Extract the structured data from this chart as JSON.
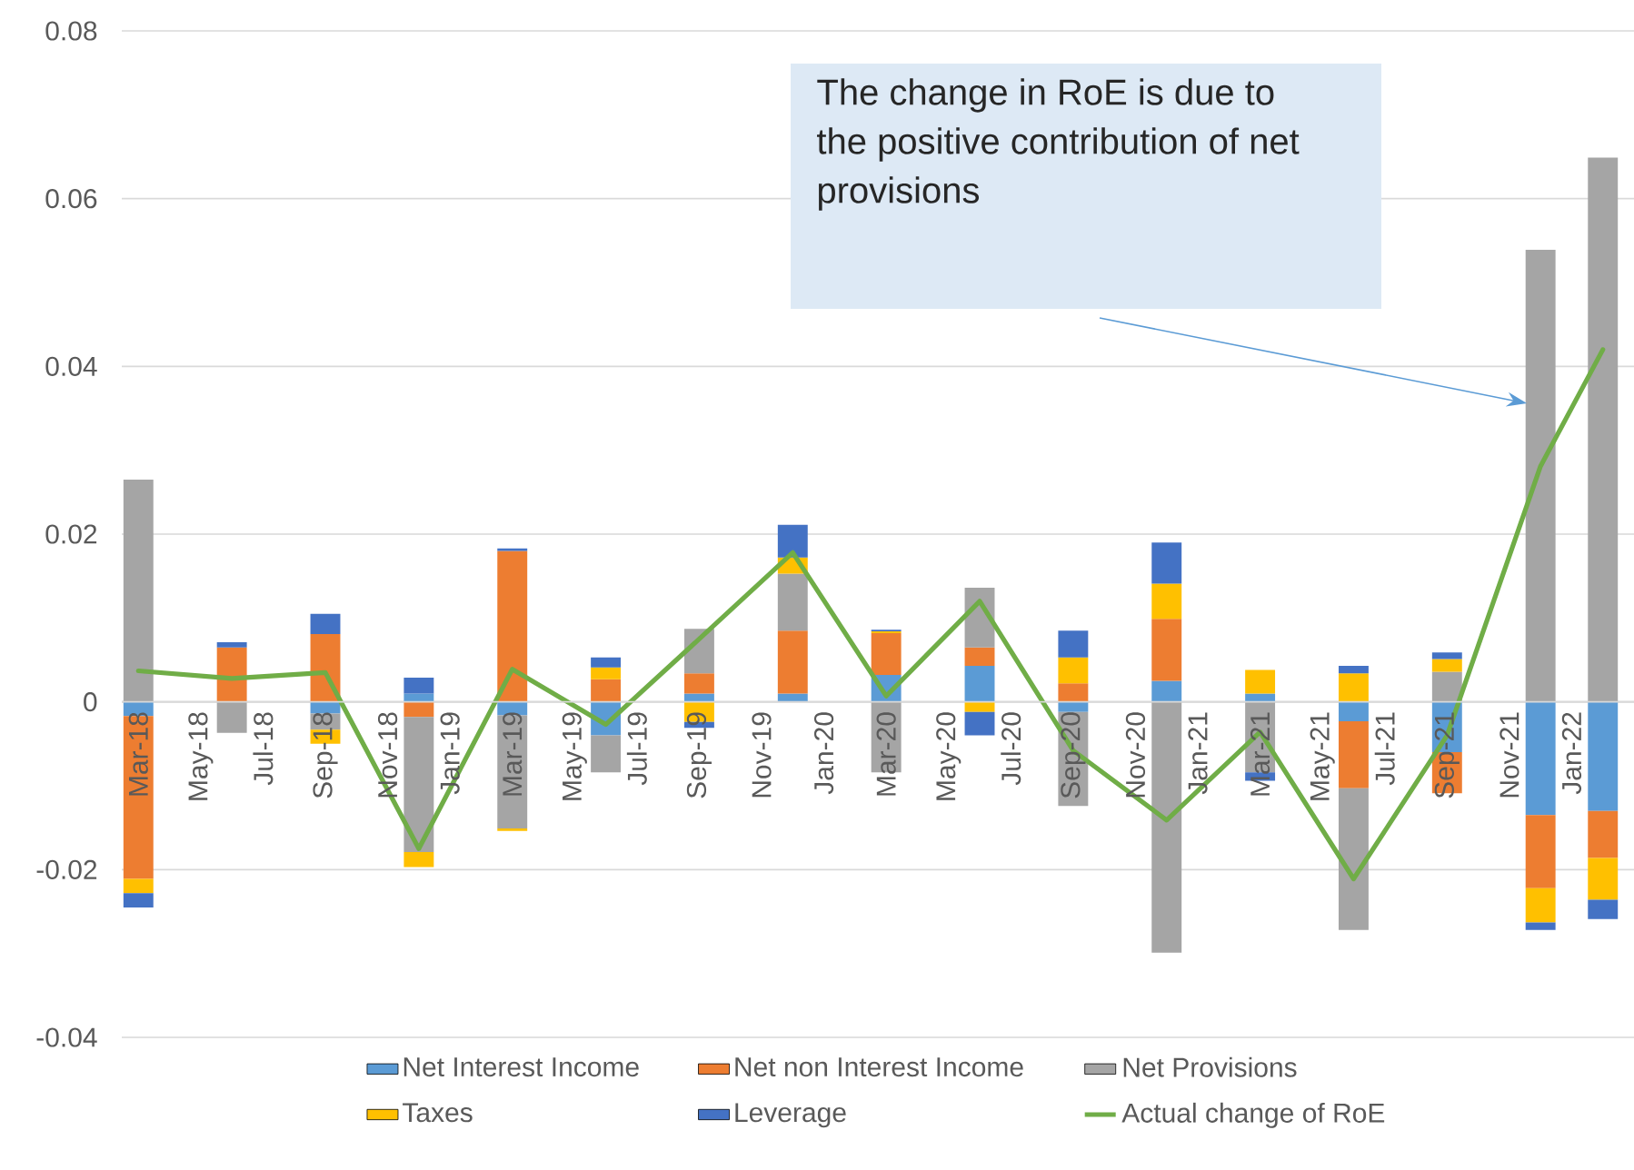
{
  "chart_data": {
    "type": "bar",
    "stacked": true,
    "grid": "y",
    "legend": "bottom",
    "x": [
      "2018-03",
      "2018-06",
      "2018-09",
      "2018-12",
      "2019-03",
      "2019-06",
      "2019-09",
      "2019-12",
      "2020-03",
      "2020-06",
      "2020-09",
      "2020-12",
      "2021-03",
      "2021-06",
      "2021-09",
      "2021-12",
      "2022-02"
    ],
    "series": [
      {
        "name": "Net Interest Income",
        "color": "#5b9bd5",
        "values": [
          -0.0017,
          0,
          -0.0014,
          0.001,
          -0.0016,
          -0.004,
          0.001,
          0.001,
          0.0032,
          0.0043,
          -0.0012,
          0.0025,
          0.001,
          -0.0023,
          -0.006,
          -0.0135,
          -0.013
        ]
      },
      {
        "name": "Net non Interest Income",
        "color": "#ed7d31",
        "values": [
          -0.0194,
          0.0065,
          0.0081,
          -0.0018,
          0.018,
          0.0027,
          0.0024,
          0.0075,
          0.005,
          0.0022,
          0.0022,
          0.0074,
          0,
          -0.008,
          -0.0049,
          -0.0087,
          -0.0056
        ]
      },
      {
        "name": "Net Provisions",
        "color": "#a5a5a5",
        "values": [
          0.0265,
          -0.0037,
          -0.0019,
          -0.0161,
          -0.0135,
          -0.0044,
          0.0053,
          0.0068,
          -0.0084,
          0.0071,
          -0.0112,
          -0.0299,
          -0.0084,
          -0.0169,
          0.0036,
          0.0539,
          0.0649
        ]
      },
      {
        "name": "Taxes",
        "color": "#ffc000",
        "values": [
          -0.0017,
          0,
          -0.0017,
          -0.0018,
          -0.0003,
          0.0014,
          -0.0024,
          0.0019,
          0.0002,
          -0.0012,
          0.0031,
          0.0042,
          0.0028,
          0.0034,
          0.0015,
          -0.0041,
          -0.005
        ]
      },
      {
        "name": "Leverage",
        "color": "#4472c4",
        "values": [
          -0.0017,
          0.0006,
          0.0024,
          0.0019,
          0.0003,
          0.0012,
          -0.0007,
          0.0039,
          0.0002,
          -0.0028,
          0.0032,
          0.0049,
          -0.001,
          0.0009,
          0.0008,
          -0.0009,
          -0.0023
        ]
      },
      {
        "name": "Actual change of RoE",
        "type": "line",
        "color": "#70ad47",
        "values": [
          0.0037,
          0.0028,
          0.0035,
          -0.0175,
          0.0039,
          -0.0027,
          0.0075,
          0.0178,
          0.0007,
          0.012,
          -0.0058,
          -0.0141,
          -0.0036,
          -0.0211,
          -0.004,
          0.0281,
          0.042
        ]
      }
    ],
    "xlim": [
      "2018-02-15",
      "2022-03"
    ],
    "xticks": [
      {
        "value": "2018-03",
        "label": "Mar-18"
      },
      {
        "value": "2018-05",
        "label": "May-18"
      },
      {
        "value": "2018-07",
        "label": "Jul-18"
      },
      {
        "value": "2018-09",
        "label": "Sep-18"
      },
      {
        "value": "2018-11",
        "label": "Nov-18"
      },
      {
        "value": "2019-01",
        "label": "Jan-19"
      },
      {
        "value": "2019-03",
        "label": "Mar-19"
      },
      {
        "value": "2019-05",
        "label": "May-19"
      },
      {
        "value": "2019-07",
        "label": "Jul-19"
      },
      {
        "value": "2019-09",
        "label": "Sep-19"
      },
      {
        "value": "2019-11",
        "label": "Nov-19"
      },
      {
        "value": "2020-01",
        "label": "Jan-20"
      },
      {
        "value": "2020-03",
        "label": "Mar-20"
      },
      {
        "value": "2020-05",
        "label": "May-20"
      },
      {
        "value": "2020-07",
        "label": "Jul-20"
      },
      {
        "value": "2020-09",
        "label": "Sep-20"
      },
      {
        "value": "2020-11",
        "label": "Nov-20"
      },
      {
        "value": "2021-01",
        "label": "Jan-21"
      },
      {
        "value": "2021-03",
        "label": "Mar-21"
      },
      {
        "value": "2021-05",
        "label": "May-21"
      },
      {
        "value": "2021-07",
        "label": "Jul-21"
      },
      {
        "value": "2021-09",
        "label": "Sep-21"
      },
      {
        "value": "2021-11",
        "label": "Nov-21"
      },
      {
        "value": "2022-01",
        "label": "Jan-22"
      }
    ],
    "ylim": [
      -0.04,
      0.08
    ],
    "yticks": [
      -0.04,
      -0.02,
      0,
      0.02,
      0.04,
      0.06,
      0.08
    ],
    "annotations": [
      "The change in RoE is due to the positive contribution of net provisions"
    ]
  }
}
